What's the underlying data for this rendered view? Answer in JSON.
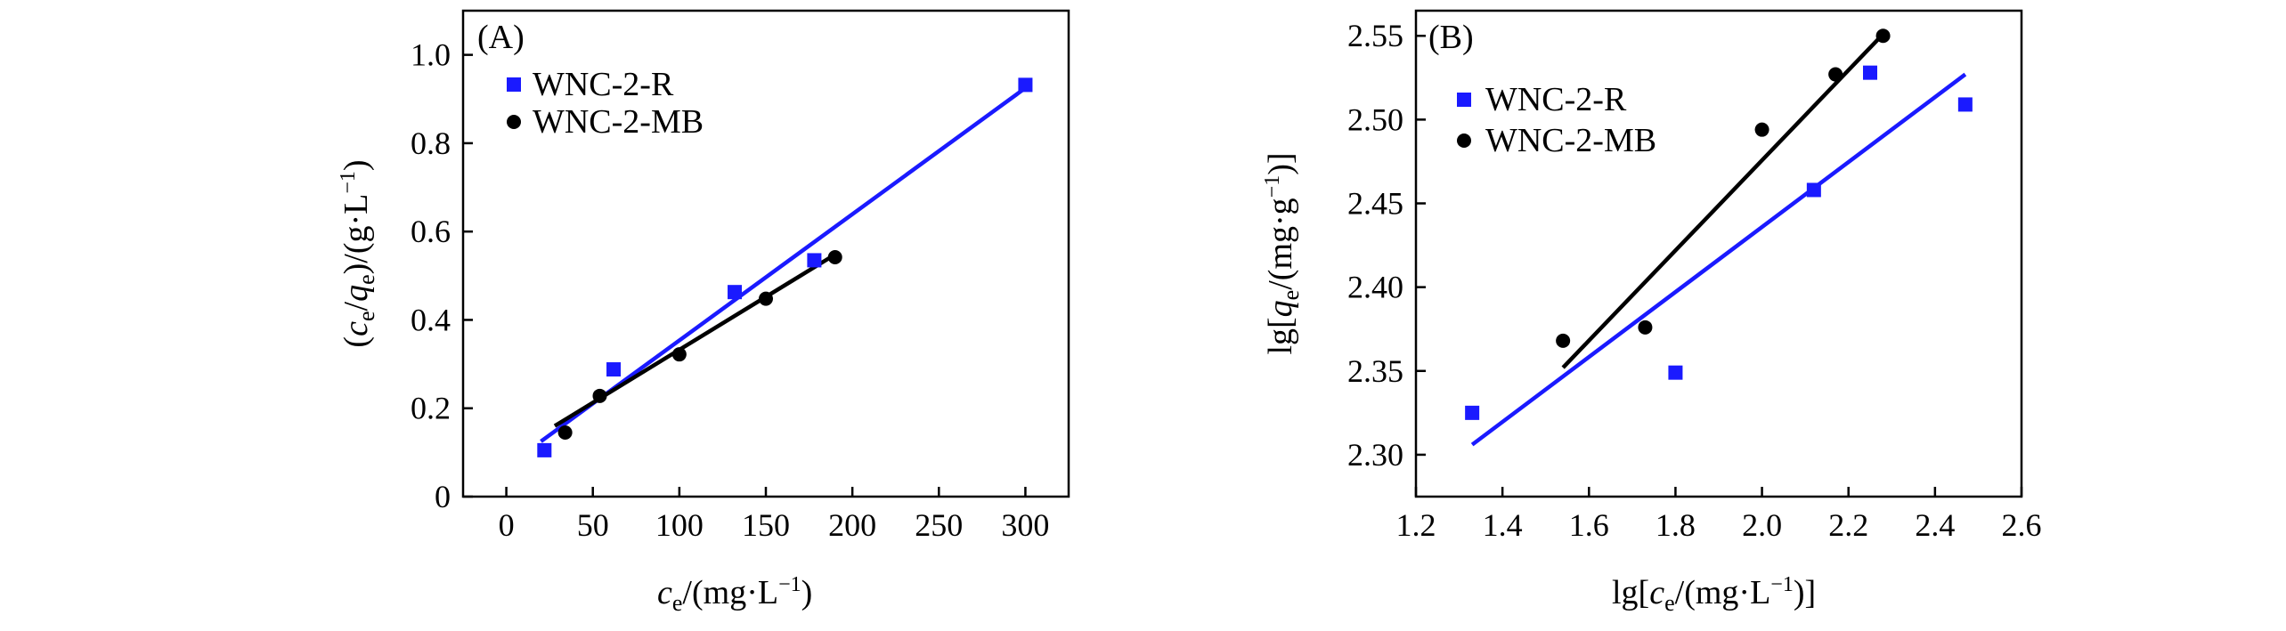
{
  "chart_data": [
    {
      "type": "scatter",
      "panel_label": "(A)",
      "xlabel": "ce/(mg·L⁻¹)",
      "ylabel": "(ce/qe)/(g·L⁻¹)",
      "xlim": [
        -25,
        325
      ],
      "ylim": [
        0,
        1.1
      ],
      "xticks": [
        0,
        50,
        100,
        150,
        200,
        250,
        300
      ],
      "yticks": [
        0,
        0.2,
        0.4,
        0.6,
        0.8,
        1.0
      ],
      "xtick_labels": [
        "0",
        "50",
        "100",
        "150",
        "200",
        "250",
        "300"
      ],
      "ytick_labels": [
        "0",
        "0.2",
        "0.4",
        "0.6",
        "0.8",
        "1.0"
      ],
      "legend_position": "top-left",
      "series": [
        {
          "name": "WNC-2-R",
          "marker": "square",
          "color": "#1a1aff",
          "x": [
            22,
            62,
            132,
            178,
            300
          ],
          "y": [
            0.105,
            0.288,
            0.463,
            0.535,
            0.932
          ],
          "fit": {
            "x": [
              20,
              300
            ],
            "y": [
              0.125,
              0.925
            ]
          }
        },
        {
          "name": "WNC-2-MB",
          "marker": "circle",
          "color": "#000000",
          "x": [
            34,
            54,
            100,
            150,
            190
          ],
          "y": [
            0.145,
            0.228,
            0.322,
            0.448,
            0.542
          ],
          "fit": {
            "x": [
              28,
              190
            ],
            "y": [
              0.16,
              0.548
            ]
          }
        }
      ]
    },
    {
      "type": "scatter",
      "panel_label": "(B)",
      "xlabel": "lg[ce/(mg·L⁻¹)]",
      "ylabel": "lg[qe/(mg·g⁻¹)]",
      "xlim": [
        1.2,
        2.6
      ],
      "ylim": [
        2.275,
        2.565
      ],
      "xticks": [
        1.2,
        1.4,
        1.6,
        1.8,
        2.0,
        2.2,
        2.4,
        2.6
      ],
      "yticks": [
        2.3,
        2.35,
        2.4,
        2.45,
        2.5,
        2.55
      ],
      "xtick_labels": [
        "1.2",
        "1.4",
        "1.6",
        "1.8",
        "2.0",
        "2.2",
        "2.4",
        "2.6"
      ],
      "ytick_labels": [
        "2.30",
        "2.35",
        "2.40",
        "2.45",
        "2.50",
        "2.55"
      ],
      "legend_position": "upper-left",
      "series": [
        {
          "name": "WNC-2-R",
          "marker": "square",
          "color": "#1a1aff",
          "x": [
            1.33,
            1.8,
            2.12,
            2.25,
            2.47
          ],
          "y": [
            2.325,
            2.349,
            2.458,
            2.528,
            2.509
          ],
          "fit": {
            "x": [
              1.33,
              2.47
            ],
            "y": [
              2.306,
              2.527
            ]
          }
        },
        {
          "name": "WNC-2-MB",
          "marker": "circle",
          "color": "#000000",
          "x": [
            1.54,
            1.73,
            2.0,
            2.17,
            2.28
          ],
          "y": [
            2.368,
            2.376,
            2.494,
            2.527,
            2.55
          ],
          "fit": {
            "x": [
              1.54,
              2.28
            ],
            "y": [
              2.352,
              2.551
            ]
          }
        }
      ]
    }
  ]
}
